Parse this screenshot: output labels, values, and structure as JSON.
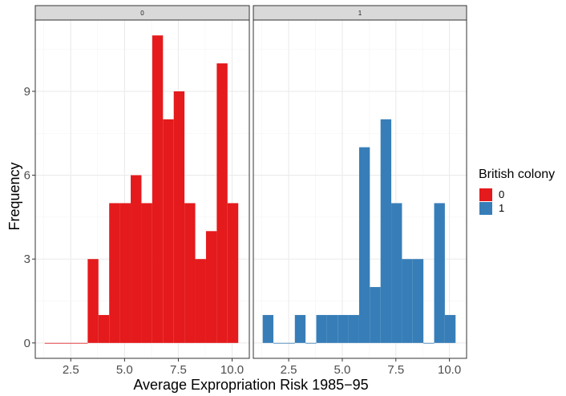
{
  "chart_data": {
    "type": "bar",
    "title": "",
    "xlabel": "Average Expropriation Risk 1985−95",
    "ylabel": "Frequency",
    "xlim": [
      0.85,
      10.8
    ],
    "ylim": [
      -0.55,
      11.55
    ],
    "x_ticks": [
      2.5,
      5.0,
      7.5,
      10.0
    ],
    "x_tick_labels": [
      "2.5",
      "5.0",
      "7.5",
      "10.0"
    ],
    "y_ticks": [
      0,
      3,
      6,
      9
    ],
    "y_tick_labels": [
      "0",
      "3",
      "6",
      "9"
    ],
    "grid": true,
    "legend": {
      "title": "British colony",
      "placement": "right",
      "entries": [
        {
          "label": "0",
          "color": "#E41A1C"
        },
        {
          "label": "1",
          "color": "#377EB8"
        }
      ]
    },
    "bin_edges": [
      1.286,
      1.786,
      2.286,
      2.786,
      3.286,
      3.786,
      4.286,
      4.786,
      5.286,
      5.786,
      6.286,
      6.786,
      7.286,
      7.786,
      8.286,
      8.786,
      9.286,
      9.786,
      10.286
    ],
    "facets": [
      {
        "strip_label": "0",
        "series_name": "0",
        "color": "#E41A1C",
        "counts": [
          0,
          0,
          0,
          0,
          3,
          1,
          5,
          5,
          6,
          5,
          11,
          8,
          9,
          5,
          3,
          4,
          10,
          5
        ]
      },
      {
        "strip_label": "1",
        "series_name": "1",
        "color": "#377EB8",
        "counts": [
          1,
          0,
          0,
          1,
          0,
          1,
          1,
          1,
          1,
          7,
          2,
          8,
          5,
          3,
          3,
          0,
          5,
          1
        ]
      }
    ]
  }
}
